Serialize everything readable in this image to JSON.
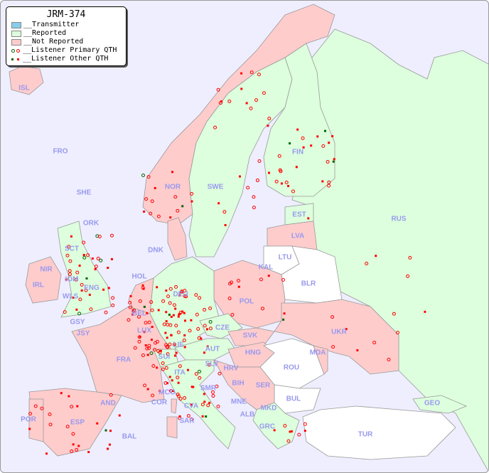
{
  "legend": {
    "title": "JRM-374",
    "items": [
      {
        "label": "__Transmitter",
        "color": "#87ceeb"
      },
      {
        "label": "__Reported",
        "color": "#ddffdd"
      },
      {
        "label": "__Not Reported",
        "color": "#ffcccc"
      },
      {
        "label": "__Listener Primary QTH",
        "colors": [
          "#006600",
          "#ff0000"
        ],
        "marker": "ring"
      },
      {
        "label": "__Listener Other QTH",
        "colors": [
          "#006600",
          "#ff0000"
        ],
        "marker": "square"
      }
    ]
  },
  "colors": {
    "background": "#eeeeff",
    "reported": "#ddffdd",
    "not_reported": "#ffcccc",
    "unknown": "#ffffff",
    "label": "#9999ee",
    "marker": "#ff0000"
  },
  "countries": {
    "reported": [
      "SWE",
      "FIN",
      "RUS",
      "EST",
      "DEU",
      "CZE",
      "SUI",
      "LIE",
      "ITA",
      "SLV",
      "HRV",
      "SMR",
      "CVA",
      "GEO",
      "ENG",
      "SCT",
      "WLS",
      "IOM",
      "GRC",
      "ALB",
      "MNE",
      "MKD",
      "AUT"
    ],
    "not_reported": [
      "ISL",
      "NOR",
      "DNK",
      "LVA",
      "POL",
      "UKR",
      "IRL",
      "NIR",
      "HOL",
      "BEL",
      "LUX",
      "FRA",
      "ESP",
      "POR",
      "AND",
      "BAL",
      "COR",
      "SAR",
      "MCO",
      "SVK",
      "HNG",
      "SER",
      "BIH",
      "MDA"
    ],
    "unknown": [
      "LTU",
      "KAL",
      "BLR",
      "ROU",
      "BUL",
      "TUR"
    ]
  },
  "labels": [
    "ISL",
    "FRO",
    "SHE",
    "ORK",
    "NOR",
    "SWE",
    "FIN",
    "RUS",
    "EST",
    "LVA",
    "LTU",
    "KAL",
    "BLR",
    "DNK",
    "HOL",
    "BEL",
    "DEU",
    "POL",
    "UKR",
    "IRL",
    "NIR",
    "WLS",
    "ENG",
    "IOM",
    "SCT",
    "GSY",
    "JSY",
    "LUX",
    "FRA",
    "SUI",
    "LIE",
    "AUT",
    "CZE",
    "SVK",
    "HNG",
    "MDA",
    "ROU",
    "SLV",
    "HRV",
    "BIH",
    "SER",
    "ITA",
    "MCO",
    "COR",
    "SAR",
    "SMR",
    "CVA",
    "MNE",
    "ALB",
    "MKD",
    "BUL",
    "GRC",
    "TUR",
    "GEO",
    "AND",
    "ESP",
    "POR",
    "BAL"
  ]
}
